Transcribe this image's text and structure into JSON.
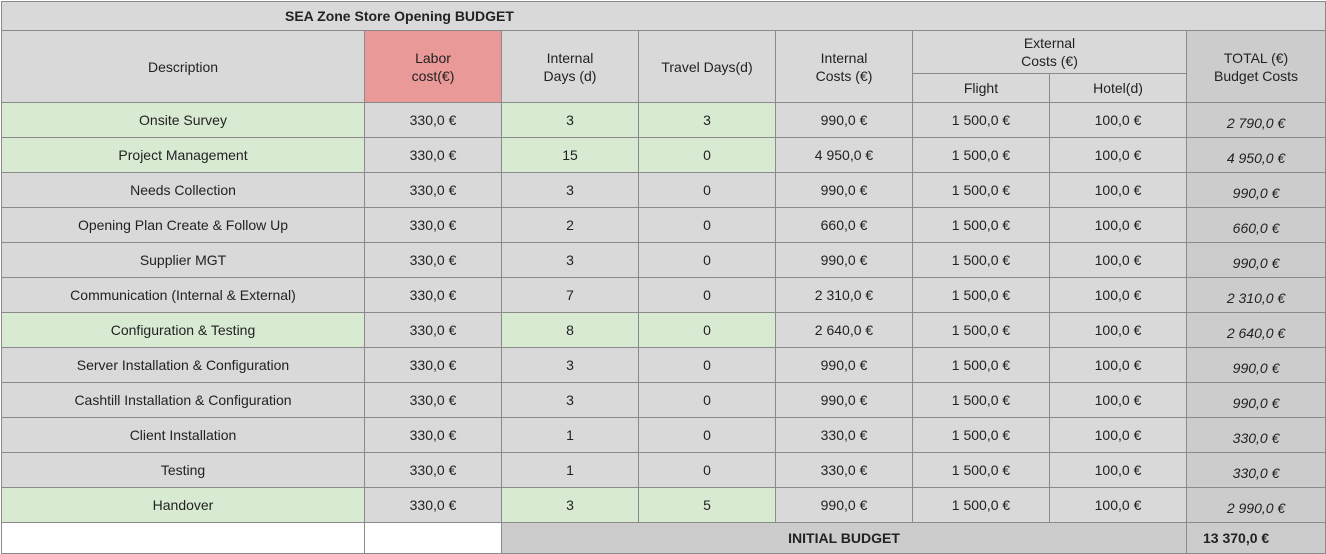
{
  "title": "SEA Zone Store Opening BUDGET",
  "headers": {
    "description": "Description",
    "labor": [
      "Labor",
      "cost(€)"
    ],
    "internal_days": [
      "Internal",
      "Days (d)"
    ],
    "travel_days": "Travel Days(d)",
    "internal_costs": [
      "Internal",
      "Costs (€)"
    ],
    "external_costs": [
      "External",
      "Costs (€)"
    ],
    "flight": "Flight",
    "hotel": "Hotel(d)",
    "total": [
      "TOTAL (€)",
      "Budget Costs"
    ]
  },
  "rows": [
    {
      "desc": "Onsite Survey",
      "labor": "330,0 €",
      "days": "3",
      "travel": "3",
      "internal": "990,0 €",
      "flight": "1 500,0 €",
      "hotel": "100,0 €",
      "total": "2 790,0 €",
      "highlight": true
    },
    {
      "desc": "Project Management",
      "labor": "330,0 €",
      "days": "15",
      "travel": "0",
      "internal": "4 950,0 €",
      "flight": "1 500,0 €",
      "hotel": "100,0 €",
      "total": "4 950,0 €",
      "highlight": true
    },
    {
      "desc": "Needs Collection",
      "labor": "330,0 €",
      "days": "3",
      "travel": "0",
      "internal": "990,0 €",
      "flight": "1 500,0 €",
      "hotel": "100,0 €",
      "total": "990,0 €",
      "highlight": false
    },
    {
      "desc": "Opening Plan Create & Follow Up",
      "labor": "330,0 €",
      "days": "2",
      "travel": "0",
      "internal": "660,0 €",
      "flight": "1 500,0 €",
      "hotel": "100,0 €",
      "total": "660,0 €",
      "highlight": false
    },
    {
      "desc": "Supplier MGT",
      "labor": "330,0 €",
      "days": "3",
      "travel": "0",
      "internal": "990,0 €",
      "flight": "1 500,0 €",
      "hotel": "100,0 €",
      "total": "990,0 €",
      "highlight": false
    },
    {
      "desc": "Communication (Internal & External)",
      "labor": "330,0 €",
      "days": "7",
      "travel": "0",
      "internal": "2 310,0 €",
      "flight": "1 500,0 €",
      "hotel": "100,0 €",
      "total": "2 310,0 €",
      "highlight": false
    },
    {
      "desc": "Configuration & Testing",
      "labor": "330,0 €",
      "days": "8",
      "travel": "0",
      "internal": "2 640,0 €",
      "flight": "1 500,0 €",
      "hotel": "100,0 €",
      "total": "2 640,0 €",
      "highlight": true
    },
    {
      "desc": "Server Installation & Configuration",
      "labor": "330,0 €",
      "days": "3",
      "travel": "0",
      "internal": "990,0 €",
      "flight": "1 500,0 €",
      "hotel": "100,0 €",
      "total": "990,0 €",
      "highlight": false
    },
    {
      "desc": "Cashtill Installation & Configuration",
      "labor": "330,0 €",
      "days": "3",
      "travel": "0",
      "internal": "990,0 €",
      "flight": "1 500,0 €",
      "hotel": "100,0 €",
      "total": "990,0 €",
      "highlight": false
    },
    {
      "desc": "Client Installation",
      "labor": "330,0 €",
      "days": "1",
      "travel": "0",
      "internal": "330,0 €",
      "flight": "1 500,0 €",
      "hotel": "100,0 €",
      "total": "330,0 €",
      "highlight": false
    },
    {
      "desc": "Testing",
      "labor": "330,0 €",
      "days": "1",
      "travel": "0",
      "internal": "330,0 €",
      "flight": "1 500,0 €",
      "hotel": "100,0 €",
      "total": "330,0 €",
      "highlight": false
    },
    {
      "desc": "Handover",
      "labor": "330,0 €",
      "days": "3",
      "travel": "5",
      "internal": "990,0 €",
      "flight": "1 500,0 €",
      "hotel": "100,0 €",
      "total": "2 990,0 €",
      "highlight": true
    }
  ],
  "footer": {
    "label": "INITIAL BUDGET",
    "value": "13 370,0 €"
  },
  "colors": {
    "header_grey": "#d9d9d9",
    "labor_header": "#ea9999",
    "row_highlight": "#d9ead3",
    "total_column": "#cccccc"
  }
}
